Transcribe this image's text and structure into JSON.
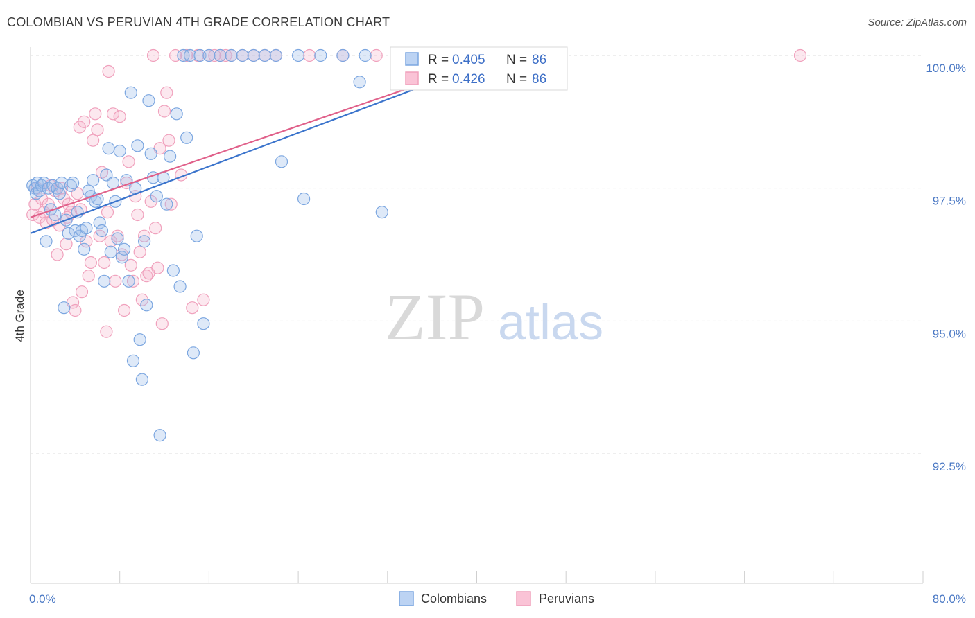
{
  "title": "COLOMBIAN VS PERUVIAN 4TH GRADE CORRELATION CHART",
  "source": "Source: ZipAtlas.com",
  "watermark": {
    "zip": "ZIP",
    "atlas": "atlas"
  },
  "chart_data": {
    "type": "scatter",
    "ylabel": "4th Grade",
    "xlim": [
      0,
      80
    ],
    "ylim": [
      90.5,
      100.6
    ],
    "x_tick_labels": {
      "left": "0.0%",
      "right": "80.0%"
    },
    "y_ticks": [
      {
        "value": 100.0,
        "label": "100.0%"
      },
      {
        "value": 97.5,
        "label": "97.5%"
      },
      {
        "value": 95.0,
        "label": "95.0%"
      },
      {
        "value": 92.5,
        "label": "92.5%"
      }
    ],
    "legend": {
      "rows": [
        {
          "r_label": "R = ",
          "r_value": "0.405",
          "n_label": "N = ",
          "n_value": "86"
        },
        {
          "r_label": "R = ",
          "r_value": "0.426",
          "n_label": "N = ",
          "n_value": "86"
        }
      ]
    },
    "series": [
      {
        "name": "Colombians",
        "color": "#7ba6e0",
        "line_color": "#3b74cc",
        "trend": [
          [
            0,
            96.65
          ],
          [
            42.5,
            100.0
          ]
        ],
        "points": [
          [
            0.2,
            97.55
          ],
          [
            0.4,
            97.5
          ],
          [
            0.5,
            97.4
          ],
          [
            0.6,
            97.6
          ],
          [
            0.8,
            97.45
          ],
          [
            1.0,
            97.55
          ],
          [
            1.2,
            97.6
          ],
          [
            1.4,
            96.5
          ],
          [
            1.6,
            97.5
          ],
          [
            1.8,
            97.1
          ],
          [
            2.0,
            97.55
          ],
          [
            2.2,
            97.0
          ],
          [
            2.4,
            97.5
          ],
          [
            2.6,
            97.4
          ],
          [
            2.8,
            97.6
          ],
          [
            3.0,
            95.25
          ],
          [
            3.2,
            96.9
          ],
          [
            3.4,
            96.65
          ],
          [
            3.6,
            97.55
          ],
          [
            3.8,
            97.6
          ],
          [
            4.0,
            96.7
          ],
          [
            4.2,
            97.05
          ],
          [
            4.4,
            96.6
          ],
          [
            4.6,
            96.7
          ],
          [
            4.8,
            96.35
          ],
          [
            5.0,
            96.75
          ],
          [
            5.2,
            97.45
          ],
          [
            5.4,
            97.35
          ],
          [
            5.6,
            97.65
          ],
          [
            5.8,
            97.25
          ],
          [
            6.0,
            97.3
          ],
          [
            6.2,
            96.85
          ],
          [
            6.4,
            96.7
          ],
          [
            6.6,
            95.75
          ],
          [
            6.8,
            97.75
          ],
          [
            7.0,
            98.25
          ],
          [
            7.2,
            96.3
          ],
          [
            7.4,
            97.6
          ],
          [
            7.6,
            97.25
          ],
          [
            7.8,
            96.55
          ],
          [
            8.0,
            98.2
          ],
          [
            8.2,
            96.2
          ],
          [
            8.4,
            96.35
          ],
          [
            8.6,
            97.65
          ],
          [
            8.8,
            95.75
          ],
          [
            9.0,
            99.3
          ],
          [
            9.2,
            94.25
          ],
          [
            9.4,
            97.5
          ],
          [
            9.6,
            98.3
          ],
          [
            9.8,
            94.65
          ],
          [
            10.0,
            93.9
          ],
          [
            10.2,
            96.5
          ],
          [
            10.4,
            95.3
          ],
          [
            10.6,
            99.15
          ],
          [
            10.8,
            98.15
          ],
          [
            11.0,
            97.7
          ],
          [
            11.3,
            97.35
          ],
          [
            11.6,
            92.85
          ],
          [
            11.9,
            97.7
          ],
          [
            12.2,
            97.2
          ],
          [
            12.5,
            98.1
          ],
          [
            12.8,
            95.95
          ],
          [
            13.1,
            98.9
          ],
          [
            13.4,
            95.65
          ],
          [
            13.7,
            100.0
          ],
          [
            14.0,
            98.45
          ],
          [
            14.3,
            100.0
          ],
          [
            14.6,
            94.4
          ],
          [
            14.9,
            96.6
          ],
          [
            15.2,
            100.0
          ],
          [
            15.5,
            94.95
          ],
          [
            16.0,
            100.0
          ],
          [
            17.0,
            100.0
          ],
          [
            18.0,
            100.0
          ],
          [
            19.0,
            100.0
          ],
          [
            20.0,
            100.0
          ],
          [
            21.0,
            100.0
          ],
          [
            22.0,
            100.0
          ],
          [
            24.0,
            100.0
          ],
          [
            26.0,
            100.0
          ],
          [
            28.0,
            100.0
          ],
          [
            30.0,
            100.0
          ],
          [
            22.5,
            98.0
          ],
          [
            24.5,
            97.3
          ],
          [
            29.5,
            99.5
          ],
          [
            31.5,
            97.05
          ]
        ]
      },
      {
        "name": "Peruvians",
        "color": "#f0a0bc",
        "line_color": "#e0608a",
        "trend": [
          [
            0,
            96.95
          ],
          [
            42.5,
            100.0
          ]
        ],
        "points": [
          [
            0.2,
            97.0
          ],
          [
            0.4,
            97.2
          ],
          [
            0.6,
            97.5
          ],
          [
            0.8,
            96.95
          ],
          [
            1.0,
            97.3
          ],
          [
            1.2,
            97.05
          ],
          [
            1.4,
            96.85
          ],
          [
            1.6,
            97.2
          ],
          [
            1.8,
            97.55
          ],
          [
            2.0,
            96.9
          ],
          [
            2.2,
            97.45
          ],
          [
            2.4,
            96.25
          ],
          [
            2.6,
            96.8
          ],
          [
            2.8,
            97.5
          ],
          [
            3.0,
            97.3
          ],
          [
            3.2,
            96.45
          ],
          [
            3.4,
            97.2
          ],
          [
            3.6,
            97.05
          ],
          [
            3.8,
            95.35
          ],
          [
            4.0,
            95.2
          ],
          [
            4.2,
            97.4
          ],
          [
            4.4,
            98.65
          ],
          [
            4.6,
            95.55
          ],
          [
            4.8,
            98.75
          ],
          [
            5.0,
            96.5
          ],
          [
            5.2,
            95.85
          ],
          [
            5.4,
            96.1
          ],
          [
            5.6,
            98.4
          ],
          [
            5.8,
            98.9
          ],
          [
            6.0,
            98.6
          ],
          [
            6.2,
            96.6
          ],
          [
            6.4,
            97.8
          ],
          [
            6.6,
            96.1
          ],
          [
            6.8,
            94.8
          ],
          [
            7.0,
            99.7
          ],
          [
            7.2,
            96.5
          ],
          [
            7.4,
            98.9
          ],
          [
            7.6,
            95.75
          ],
          [
            7.8,
            96.6
          ],
          [
            8.0,
            98.85
          ],
          [
            8.2,
            96.25
          ],
          [
            8.4,
            95.2
          ],
          [
            8.6,
            97.6
          ],
          [
            8.8,
            98.0
          ],
          [
            9.0,
            96.05
          ],
          [
            9.2,
            95.75
          ],
          [
            9.4,
            97.35
          ],
          [
            9.6,
            97.0
          ],
          [
            9.8,
            96.3
          ],
          [
            10.0,
            95.4
          ],
          [
            10.2,
            96.6
          ],
          [
            10.4,
            95.85
          ],
          [
            10.6,
            95.9
          ],
          [
            10.8,
            97.25
          ],
          [
            11.0,
            100.0
          ],
          [
            11.2,
            96.75
          ],
          [
            11.4,
            96.0
          ],
          [
            11.6,
            98.25
          ],
          [
            11.8,
            94.95
          ],
          [
            12.0,
            98.95
          ],
          [
            12.2,
            99.3
          ],
          [
            12.4,
            98.4
          ],
          [
            12.6,
            97.2
          ],
          [
            13.0,
            100.0
          ],
          [
            13.5,
            97.75
          ],
          [
            14.0,
            100.0
          ],
          [
            14.5,
            95.25
          ],
          [
            15.0,
            100.0
          ],
          [
            15.5,
            95.4
          ],
          [
            16.0,
            100.0
          ],
          [
            16.5,
            100.0
          ],
          [
            17.0,
            100.0
          ],
          [
            17.5,
            100.0
          ],
          [
            18.0,
            100.0
          ],
          [
            19.0,
            100.0
          ],
          [
            20.0,
            100.0
          ],
          [
            21.0,
            100.0
          ],
          [
            22.0,
            100.0
          ],
          [
            25.0,
            100.0
          ],
          [
            28.0,
            100.0
          ],
          [
            31.0,
            100.0
          ],
          [
            33.0,
            100.0
          ],
          [
            3.3,
            96.95
          ],
          [
            4.5,
            97.1
          ],
          [
            6.9,
            97.05
          ],
          [
            69.0,
            100.0
          ]
        ]
      }
    ]
  }
}
